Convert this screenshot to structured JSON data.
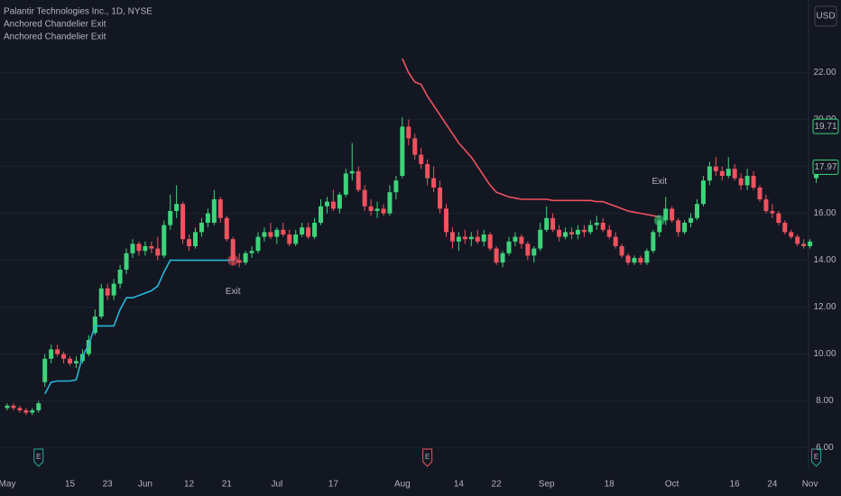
{
  "chart_data": {
    "type": "candlestick",
    "title": "Palantir Technologies Inc., 1D, NYSE",
    "currency": "USD",
    "up_color": "#3ed37a",
    "down_color": "#f0525f",
    "ylim": [
      5.1,
      25.1
    ],
    "yticks": [
      {
        "value": 6,
        "label": "6.00"
      },
      {
        "value": 8,
        "label": "8.00"
      },
      {
        "value": 10,
        "label": "10.00"
      },
      {
        "value": 12,
        "label": "12.00"
      },
      {
        "value": 14,
        "label": "14.00"
      },
      {
        "value": 16,
        "label": "16.00"
      },
      {
        "value": 18,
        "label": "18.00"
      },
      {
        "value": 20,
        "label": "20.00"
      },
      {
        "value": 22,
        "label": "22.00"
      }
    ],
    "grid": true,
    "categories": [
      "May",
      null,
      null,
      null,
      null,
      null,
      null,
      null,
      null,
      null,
      "15",
      null,
      null,
      null,
      null,
      null,
      "23",
      null,
      null,
      null,
      null,
      null,
      "Jun",
      null,
      null,
      null,
      null,
      null,
      null,
      "12",
      null,
      null,
      null,
      null,
      null,
      "21",
      null,
      null,
      null,
      null,
      null,
      null,
      null,
      "Jul",
      null,
      null,
      null,
      null,
      null,
      null,
      null,
      null,
      "17",
      null,
      null,
      null,
      null,
      null,
      null,
      null,
      null,
      null,
      null,
      "Aug",
      null,
      null,
      null,
      null,
      null,
      null,
      null,
      null,
      "14",
      null,
      null,
      null,
      null,
      null,
      "22",
      null,
      null,
      null,
      null,
      null,
      null,
      null,
      "Sep",
      null,
      null,
      null,
      null,
      null,
      null,
      null,
      null,
      null,
      "18",
      null,
      null,
      null,
      null,
      null,
      null,
      null,
      null,
      null,
      "Oct",
      null,
      null,
      null,
      null,
      null,
      null,
      null,
      null,
      null,
      "16",
      null,
      null,
      null,
      null,
      null,
      "24",
      null,
      null,
      null,
      null,
      null,
      "Nov",
      null
    ],
    "ohlc": [
      [
        7.7,
        7.9,
        7.6,
        7.8
      ],
      [
        7.8,
        7.9,
        7.6,
        7.7
      ],
      [
        7.7,
        7.8,
        7.5,
        7.6
      ],
      [
        7.6,
        7.7,
        7.4,
        7.5
      ],
      [
        7.5,
        7.7,
        7.4,
        7.6
      ],
      [
        7.6,
        8.0,
        7.5,
        7.9
      ],
      [
        8.8,
        10.0,
        8.6,
        9.8
      ],
      [
        9.8,
        10.4,
        9.6,
        10.2
      ],
      [
        10.2,
        10.4,
        9.9,
        10.0
      ],
      [
        10.0,
        10.1,
        9.6,
        9.8
      ],
      [
        9.8,
        9.9,
        9.5,
        9.6
      ],
      [
        9.6,
        9.9,
        9.4,
        9.7
      ],
      [
        9.7,
        10.2,
        9.6,
        10.0
      ],
      [
        10.0,
        10.8,
        9.9,
        10.6
      ],
      [
        10.9,
        11.9,
        10.8,
        11.6
      ],
      [
        11.6,
        13.0,
        11.5,
        12.8
      ],
      [
        12.8,
        13.0,
        12.3,
        12.5
      ],
      [
        12.5,
        13.2,
        12.3,
        13.0
      ],
      [
        13.0,
        13.8,
        12.8,
        13.6
      ],
      [
        13.6,
        14.5,
        13.4,
        14.3
      ],
      [
        14.3,
        14.9,
        14.1,
        14.7
      ],
      [
        14.7,
        14.8,
        14.2,
        14.4
      ],
      [
        14.4,
        14.8,
        14.2,
        14.6
      ],
      [
        14.6,
        14.8,
        14.3,
        14.5
      ],
      [
        14.5,
        15.0,
        14.0,
        14.2
      ],
      [
        14.2,
        15.7,
        14.1,
        15.5
      ],
      [
        15.5,
        16.8,
        15.3,
        16.1
      ],
      [
        16.1,
        17.2,
        15.8,
        16.4
      ],
      [
        16.4,
        16.5,
        14.7,
        14.9
      ],
      [
        14.9,
        15.1,
        14.4,
        14.6
      ],
      [
        14.6,
        15.4,
        14.5,
        15.2
      ],
      [
        15.2,
        15.8,
        15.0,
        15.6
      ],
      [
        15.6,
        16.2,
        15.4,
        16.0
      ],
      [
        15.6,
        17.0,
        15.5,
        16.6
      ],
      [
        16.6,
        16.7,
        15.6,
        15.8
      ],
      [
        15.8,
        15.9,
        14.8,
        14.9
      ],
      [
        14.9,
        15.0,
        13.8,
        14.0
      ],
      [
        14.0,
        14.3,
        13.7,
        13.9
      ],
      [
        13.9,
        14.4,
        13.8,
        14.3
      ],
      [
        14.3,
        14.6,
        14.1,
        14.4
      ],
      [
        14.4,
        15.2,
        14.3,
        15.0
      ],
      [
        15.0,
        15.4,
        14.8,
        15.2
      ],
      [
        15.2,
        15.6,
        14.9,
        15.0
      ],
      [
        15.0,
        15.4,
        14.7,
        15.3
      ],
      [
        15.3,
        15.6,
        15.0,
        15.1
      ],
      [
        15.1,
        15.3,
        14.6,
        14.7
      ],
      [
        14.7,
        15.3,
        14.6,
        15.1
      ],
      [
        15.1,
        15.6,
        15.0,
        15.4
      ],
      [
        15.4,
        15.6,
        14.9,
        15.0
      ],
      [
        15.0,
        15.8,
        14.9,
        15.6
      ],
      [
        15.6,
        16.6,
        15.5,
        16.3
      ],
      [
        16.3,
        16.7,
        16.0,
        16.5
      ],
      [
        16.5,
        17.0,
        16.1,
        16.2
      ],
      [
        16.2,
        16.9,
        16.0,
        16.8
      ],
      [
        16.8,
        17.9,
        16.7,
        17.7
      ],
      [
        17.7,
        19.0,
        17.4,
        17.8
      ],
      [
        17.8,
        18.0,
        16.9,
        17.0
      ],
      [
        17.0,
        17.2,
        16.1,
        16.3
      ],
      [
        16.3,
        16.6,
        15.9,
        16.1
      ],
      [
        16.1,
        16.5,
        15.8,
        16.2
      ],
      [
        16.2,
        16.4,
        15.9,
        16.0
      ],
      [
        16.0,
        17.2,
        15.9,
        16.9
      ],
      [
        16.9,
        17.6,
        16.6,
        17.4
      ],
      [
        17.6,
        20.1,
        17.5,
        19.7
      ],
      [
        19.7,
        20.0,
        18.9,
        19.2
      ],
      [
        19.2,
        19.4,
        18.3,
        18.5
      ],
      [
        18.5,
        18.8,
        17.9,
        18.1
      ],
      [
        18.1,
        18.3,
        17.2,
        17.5
      ],
      [
        17.5,
        18.0,
        16.9,
        17.1
      ],
      [
        17.1,
        17.4,
        16.0,
        16.2
      ],
      [
        16.2,
        16.4,
        15.0,
        15.2
      ],
      [
        15.2,
        15.4,
        14.5,
        14.8
      ],
      [
        14.8,
        15.2,
        14.4,
        15.0
      ],
      [
        15.0,
        15.3,
        14.7,
        14.9
      ],
      [
        14.9,
        15.2,
        14.6,
        15.0
      ],
      [
        15.0,
        15.3,
        14.7,
        14.8
      ],
      [
        14.8,
        15.3,
        14.6,
        15.1
      ],
      [
        15.1,
        15.2,
        14.4,
        14.5
      ],
      [
        14.5,
        14.6,
        13.8,
        13.9
      ],
      [
        13.9,
        14.4,
        13.7,
        14.3
      ],
      [
        14.3,
        15.0,
        14.2,
        14.8
      ],
      [
        14.8,
        15.2,
        14.6,
        15.0
      ],
      [
        15.0,
        15.1,
        14.5,
        14.7
      ],
      [
        14.7,
        14.8,
        14.0,
        14.2
      ],
      [
        14.2,
        14.6,
        13.9,
        14.5
      ],
      [
        14.5,
        15.6,
        14.4,
        15.3
      ],
      [
        15.3,
        16.3,
        15.2,
        15.8
      ],
      [
        15.8,
        16.0,
        15.2,
        15.3
      ],
      [
        15.3,
        15.5,
        14.8,
        15.0
      ],
      [
        15.0,
        15.4,
        14.9,
        15.2
      ],
      [
        15.2,
        15.4,
        14.9,
        15.1
      ],
      [
        15.1,
        15.5,
        14.9,
        15.3
      ],
      [
        15.3,
        15.5,
        15.0,
        15.2
      ],
      [
        15.2,
        15.7,
        15.1,
        15.5
      ],
      [
        15.5,
        15.9,
        15.3,
        15.6
      ],
      [
        15.6,
        15.8,
        15.2,
        15.3
      ],
      [
        15.3,
        15.5,
        14.9,
        15.0
      ],
      [
        15.0,
        15.2,
        14.5,
        14.6
      ],
      [
        14.6,
        14.7,
        14.1,
        14.2
      ],
      [
        14.2,
        14.3,
        13.8,
        13.9
      ],
      [
        13.9,
        14.2,
        13.8,
        14.1
      ],
      [
        14.1,
        14.2,
        13.8,
        13.9
      ],
      [
        13.9,
        14.5,
        13.8,
        14.4
      ],
      [
        14.4,
        15.3,
        14.3,
        15.2
      ],
      [
        15.2,
        15.9,
        15.0,
        15.7
      ],
      [
        15.7,
        16.7,
        15.5,
        16.2
      ],
      [
        16.2,
        16.3,
        15.6,
        15.7
      ],
      [
        15.7,
        15.8,
        15.0,
        15.2
      ],
      [
        15.2,
        15.7,
        15.1,
        15.6
      ],
      [
        15.6,
        16.0,
        15.4,
        15.8
      ],
      [
        15.8,
        16.6,
        15.7,
        16.4
      ],
      [
        16.4,
        17.6,
        16.3,
        17.4
      ],
      [
        17.4,
        18.2,
        17.2,
        18.0
      ],
      [
        18.0,
        18.4,
        17.6,
        17.8
      ],
      [
        17.8,
        18.0,
        17.4,
        17.6
      ],
      [
        17.6,
        18.4,
        17.5,
        17.9
      ],
      [
        17.9,
        18.1,
        17.4,
        17.5
      ],
      [
        17.5,
        17.7,
        17.0,
        17.2
      ],
      [
        17.2,
        17.9,
        17.0,
        17.6
      ],
      [
        17.6,
        17.8,
        17.0,
        17.1
      ],
      [
        17.1,
        17.2,
        16.5,
        16.6
      ],
      [
        16.6,
        16.8,
        16.0,
        16.1
      ],
      [
        16.1,
        16.4,
        15.8,
        16.0
      ],
      [
        16.0,
        16.1,
        15.5,
        15.6
      ],
      [
        15.6,
        15.7,
        15.1,
        15.2
      ],
      [
        15.2,
        15.3,
        14.9,
        15.0
      ],
      [
        15.0,
        15.1,
        14.6,
        14.7
      ],
      [
        14.7,
        14.9,
        14.5,
        14.6
      ],
      [
        14.6,
        14.9,
        14.5,
        14.8
      ],
      [
        17.5,
        18.3,
        17.3,
        17.97
      ]
    ],
    "series": [
      {
        "name": "Anchored Chandelier Exit",
        "color": "#26b6d9",
        "values": [
          null,
          null,
          null,
          null,
          null,
          null,
          8.3,
          8.8,
          8.85,
          8.85,
          8.85,
          8.9,
          9.9,
          10.4,
          11.2,
          11.2,
          11.2,
          11.2,
          11.9,
          12.4,
          12.4,
          12.5,
          12.6,
          12.7,
          12.9,
          13.5,
          14.0,
          14.0,
          14.0,
          14.0,
          14.0,
          14.0,
          14.0,
          14.0,
          14.0,
          14.0,
          14.0,
          null,
          null,
          null,
          null,
          null,
          null,
          null,
          null,
          null,
          null,
          null,
          null,
          null,
          null,
          null,
          null,
          null,
          null,
          null,
          null,
          null,
          null,
          null,
          null,
          null,
          null,
          null,
          null,
          null,
          null,
          null,
          null,
          null,
          null,
          null,
          null,
          null,
          null,
          null,
          null,
          null,
          null,
          null,
          null,
          null,
          null,
          null,
          null,
          null,
          null,
          null,
          null,
          null,
          null,
          null,
          null,
          null,
          null,
          null,
          null,
          null,
          null,
          null,
          null,
          null,
          null,
          null,
          null,
          null,
          null,
          null,
          null,
          null,
          null,
          null,
          null,
          null,
          null,
          null,
          null,
          null,
          null,
          null,
          null,
          null,
          null,
          null,
          null,
          null,
          null,
          null,
          null,
          null
        ]
      },
      {
        "name": "Anchored Chandelier Exit",
        "color": "#f0525f",
        "values": [
          null,
          null,
          null,
          null,
          null,
          null,
          null,
          null,
          null,
          null,
          null,
          null,
          null,
          null,
          null,
          null,
          null,
          null,
          null,
          null,
          null,
          null,
          null,
          null,
          null,
          null,
          null,
          null,
          null,
          null,
          null,
          null,
          null,
          null,
          null,
          null,
          null,
          null,
          null,
          null,
          null,
          null,
          null,
          null,
          null,
          null,
          null,
          null,
          null,
          null,
          null,
          null,
          null,
          null,
          null,
          null,
          null,
          null,
          null,
          null,
          null,
          null,
          null,
          22.6,
          22.0,
          21.6,
          21.5,
          21.0,
          20.6,
          20.2,
          19.8,
          19.4,
          19.0,
          18.7,
          18.4,
          18.0,
          17.6,
          17.2,
          16.9,
          16.8,
          16.7,
          16.65,
          16.6,
          16.6,
          16.6,
          16.6,
          16.6,
          16.55,
          16.55,
          16.55,
          16.55,
          16.55,
          16.55,
          16.55,
          16.5,
          16.5,
          16.4,
          16.3,
          16.2,
          16.1,
          16.05,
          16.0,
          15.95,
          15.9,
          15.85,
          null,
          null,
          null,
          null,
          null,
          null,
          null,
          null,
          null,
          null,
          null,
          null,
          null,
          null,
          null,
          null,
          null,
          null,
          null,
          null,
          null,
          null,
          null,
          null,
          null
        ]
      }
    ],
    "exits": [
      {
        "label": "Exit",
        "index": 36,
        "price": 14.0,
        "series": 0,
        "color": "#f0525f"
      },
      {
        "label": "Exit",
        "index": 104,
        "price": 15.7,
        "series": 1,
        "color": "#3ed37a"
      }
    ],
    "events": [
      {
        "label": "E",
        "index": 5,
        "color": "#26a69a"
      },
      {
        "label": "E",
        "index": 67,
        "color": "#f0525f"
      },
      {
        "label": "E",
        "index": 129,
        "color": "#26a69a"
      }
    ],
    "price_labels": [
      19.71,
      17.97
    ]
  }
}
